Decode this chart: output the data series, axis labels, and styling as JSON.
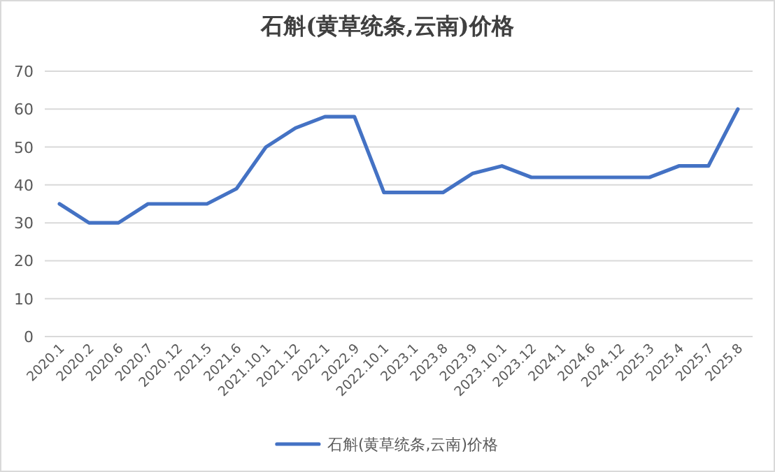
{
  "chart_data": {
    "type": "line",
    "title": "石斛(黄草统条,云南)价格",
    "categories": [
      "2020.1",
      "2020.2",
      "2020.6",
      "2020.7",
      "2020.12",
      "2021.5",
      "2021.6",
      "2021.10.1",
      "2021.12",
      "2022.1",
      "2022.9",
      "2022.10.1",
      "2023.1",
      "2023.8",
      "2023.9",
      "2023.10.1",
      "2023.12",
      "2024.1",
      "2024.6",
      "2024.12",
      "2025.3",
      "2025.4",
      "2025.7",
      "2025.8"
    ],
    "series": [
      {
        "name": "石斛(黄草统条,云南)价格",
        "color": "#4472c4",
        "values": [
          35,
          30,
          30,
          35,
          35,
          35,
          39,
          50,
          55,
          58,
          58,
          38,
          38,
          38,
          43,
          45,
          42,
          42,
          42,
          42,
          42,
          45,
          45,
          60
        ]
      }
    ],
    "ylim": [
      0,
      70
    ],
    "yticks": [
      0,
      10,
      20,
      30,
      40,
      50,
      60,
      70
    ],
    "grid": "y",
    "legend": "bottom"
  }
}
